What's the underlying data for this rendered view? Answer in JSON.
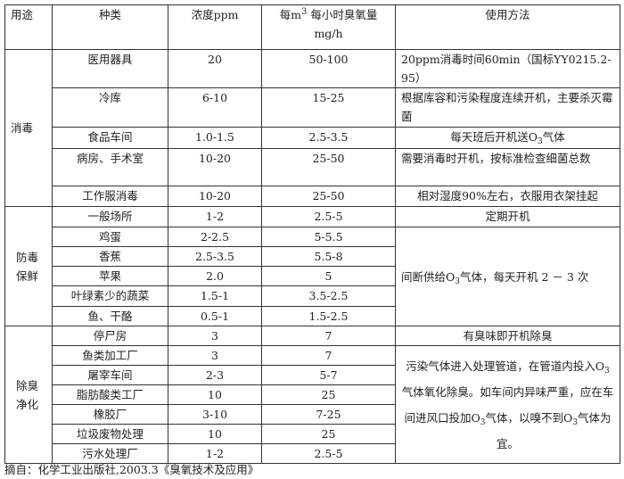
{
  "header": {
    "purpose": "用途",
    "type": "种类",
    "concentration": "浓度ppm",
    "amount_prefix": "每m",
    "amount_sup": "3",
    "amount_rest": "每小时臭氧量",
    "amount_unit": "mg/h",
    "method": "使用方法"
  },
  "groups": {
    "disinfect": "消毒",
    "preserve": "防毒保鲜",
    "deodorize": "除臭净化"
  },
  "rows": [
    {
      "type": "医用器具",
      "conc": "20",
      "amount": "50-100",
      "method": "20ppm消毒时间60min（国标YY0215.2-95）"
    },
    {
      "type": "冷库",
      "conc": "6-10",
      "amount": "15-25",
      "method": "根据库容和污染程度连续开机，主要杀灭霉菌"
    },
    {
      "type": "食品车间",
      "conc": "1.0-1.5",
      "amount": "2.5-3.5",
      "method_a": "每天班后开机送O",
      "method_sub": "3",
      "method_b": "气体"
    },
    {
      "type": "病房、手术室",
      "conc": "10-20",
      "amount": "25-50",
      "method": "需要消毒时开机，按标准检查细菌总数"
    },
    {
      "type": "工作服消毒",
      "conc": "10-20",
      "amount": "25-50",
      "method": "相对湿度90%左右，衣服用衣架挂起"
    },
    {
      "type": "一般场所",
      "conc": "1-2",
      "amount": "2.5-5",
      "method": "定期开机"
    },
    {
      "type": "鸡蛋",
      "conc": "2-2.5",
      "amount": "5-5.5"
    },
    {
      "type": "香蕉",
      "conc": "2.5-3.5",
      "amount": "5.5-8"
    },
    {
      "type": "苹果",
      "conc": "2.0",
      "amount": "5"
    },
    {
      "type": "叶绿素少的蔬菜",
      "conc": "1.5-1",
      "amount": "3.5-2.5"
    },
    {
      "type": "鱼、干酪",
      "conc": "0.5-1",
      "amount": "1.5-2.5"
    },
    {
      "type": "停尸房",
      "conc": "3",
      "amount": "7",
      "method": "有臭味即开机除臭"
    },
    {
      "type": "鱼类加工厂",
      "conc": "3",
      "amount": "7"
    },
    {
      "type": "屠宰车间",
      "conc": "2-3",
      "amount": "5-7"
    },
    {
      "type": "脂肪酸类工厂",
      "conc": "10",
      "amount": "25"
    },
    {
      "type": "橡胶厂",
      "conc": "3-10",
      "amount": "7-25"
    },
    {
      "type": "垃圾废物处理",
      "conc": "10",
      "amount": "25"
    },
    {
      "type": "污水处理厂",
      "conc": "1-2",
      "amount": "2.5-5"
    }
  ],
  "merged_methods": {
    "preserve_a": "间断供给O",
    "preserve_sub": "3",
    "preserve_b": "气体，每天开机 2 － 3 次",
    "deodor_1": "污染气体进入处理管道，在管道内投入O",
    "deodor_sub1": "3",
    "deodor_2": "气体氧化除臭。如车间内异味严重，应在车间进风口投加O",
    "deodor_sub2": "3",
    "deodor_3": "气体，以嗅不到O",
    "deodor_sub3": "3",
    "deodor_4": "气体为宜。"
  },
  "footnote": "摘自：化学工业出版社,2003.3《臭氧技术及应用》"
}
